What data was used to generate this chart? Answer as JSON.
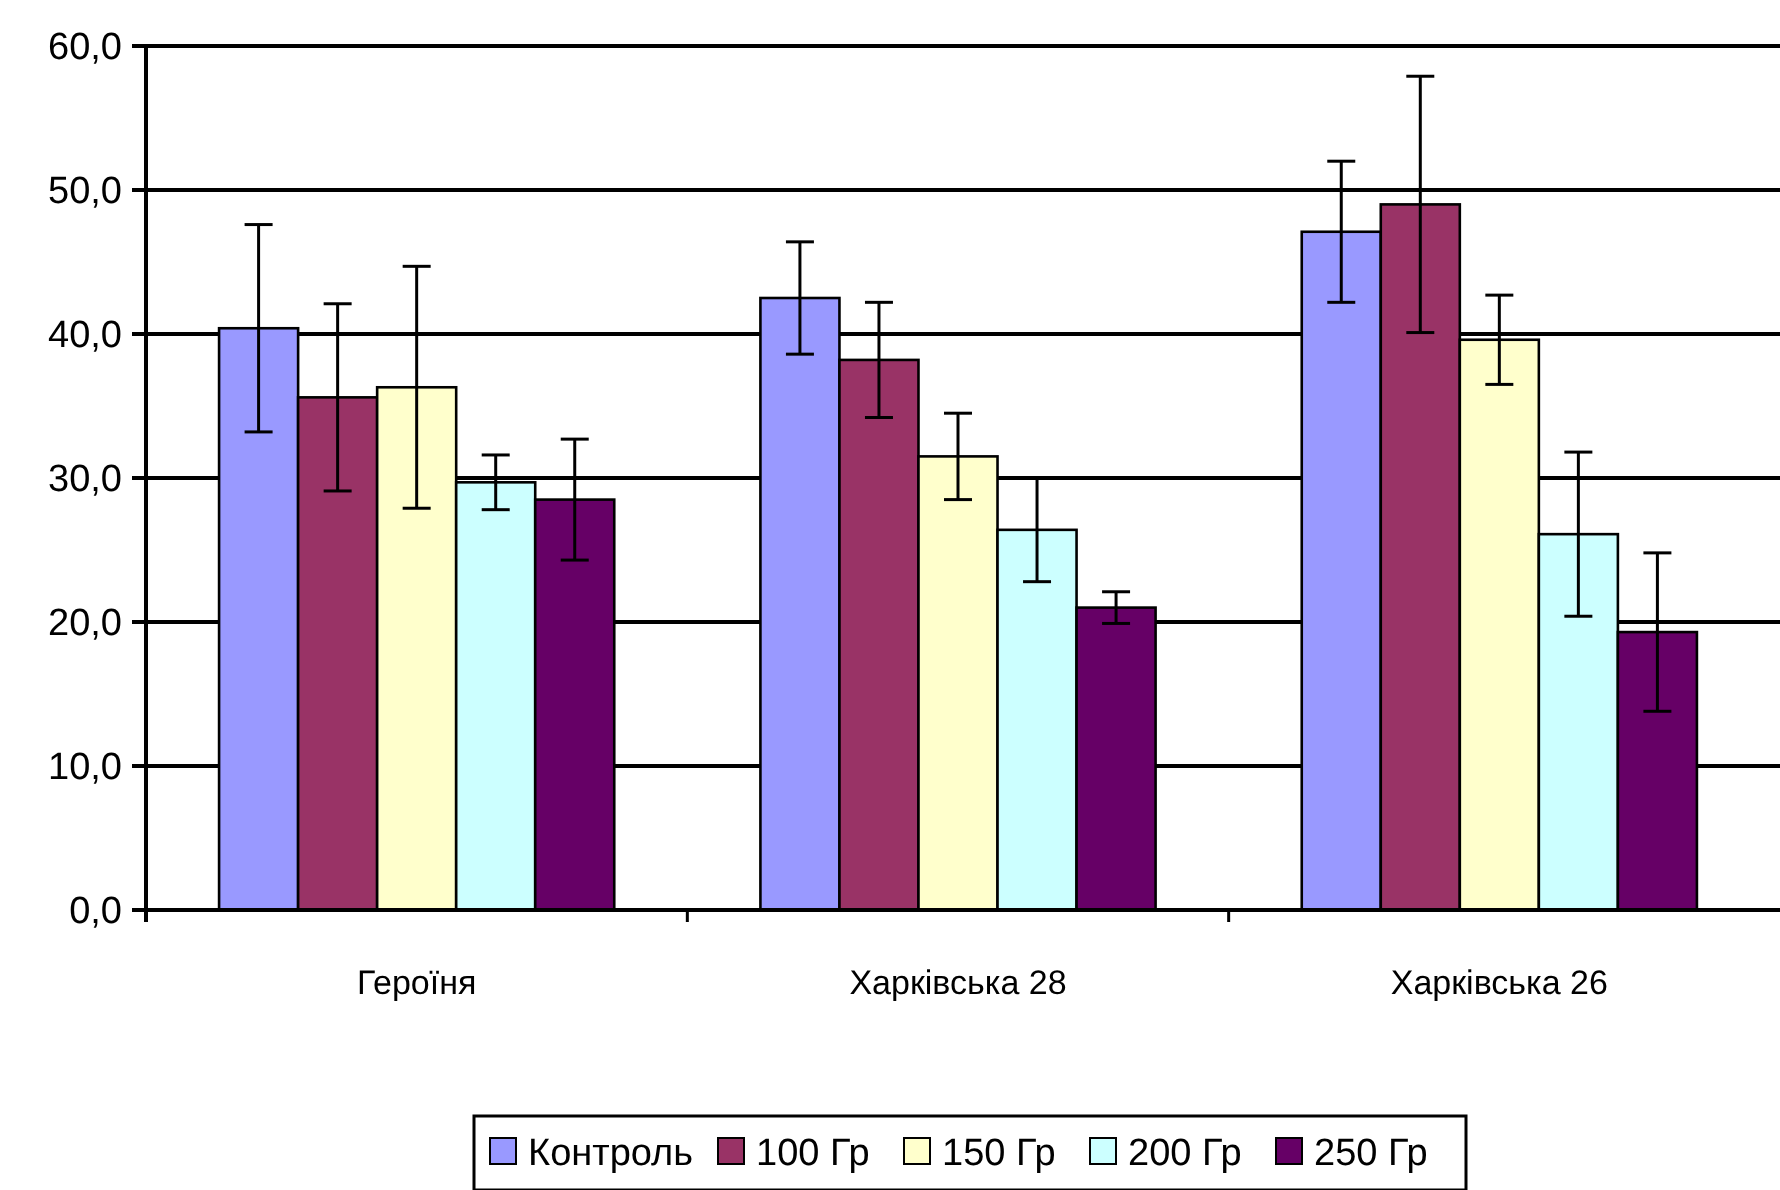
{
  "chart_data": {
    "type": "bar",
    "categories": [
      "Героїня",
      "Харківська 28",
      "Харківська 26"
    ],
    "series": [
      {
        "name": "Контроль",
        "color": "#9999ff",
        "values": [
          40.4,
          42.5,
          47.1
        ],
        "errors": [
          7.2,
          3.9,
          4.9
        ]
      },
      {
        "name": "100 Гр",
        "color": "#993366",
        "values": [
          35.6,
          38.2,
          49.0
        ],
        "errors": [
          6.5,
          4.0,
          8.9
        ]
      },
      {
        "name": "150 Гр",
        "color": "#ffffcc",
        "values": [
          36.3,
          31.5,
          39.6
        ],
        "errors": [
          8.4,
          3.0,
          3.1
        ]
      },
      {
        "name": "200 Гр",
        "color": "#ccffff",
        "values": [
          29.7,
          26.4,
          26.1
        ],
        "errors": [
          1.9,
          3.6,
          5.7
        ]
      },
      {
        "name": "250 Гр",
        "color": "#660066",
        "values": [
          28.5,
          21.0,
          19.3
        ],
        "errors": [
          4.2,
          1.1,
          5.5
        ]
      }
    ],
    "ylim": [
      0,
      60
    ],
    "yticks": [
      {
        "value": 0,
        "label": "0,0"
      },
      {
        "value": 10,
        "label": "10,0"
      },
      {
        "value": 20,
        "label": "20,0"
      },
      {
        "value": 30,
        "label": "30,0"
      },
      {
        "value": 40,
        "label": "40,0"
      },
      {
        "value": 50,
        "label": "50,0"
      },
      {
        "value": 60,
        "label": "60,0"
      }
    ],
    "grid": "y",
    "legend": "bottom"
  }
}
